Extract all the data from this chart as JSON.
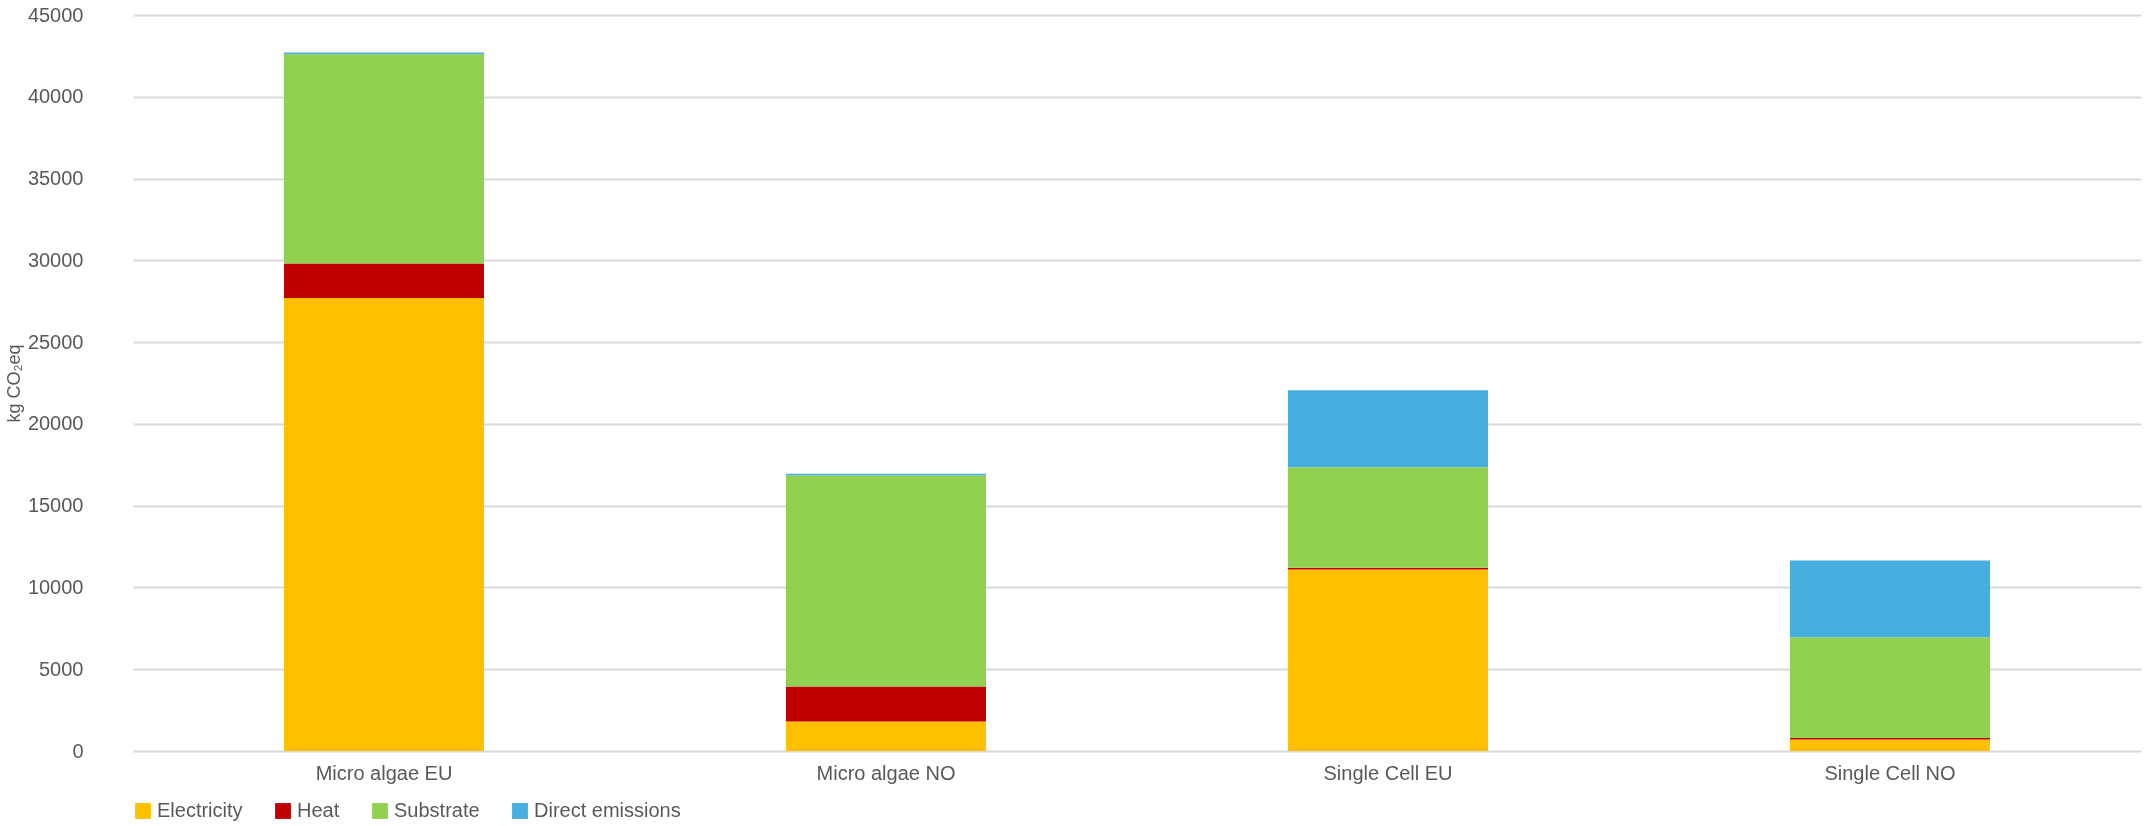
{
  "chart_data": {
    "type": "bar",
    "stacked": true,
    "ylabel": "kg CO₂eq",
    "categories": [
      "Micro algae EU",
      "Micro algae NO",
      "Single Cell EU",
      "Single Cell NO"
    ],
    "series": [
      {
        "name": "Electricity",
        "color": "#ffc000",
        "values": [
          27700,
          1800,
          11100,
          700
        ]
      },
      {
        "name": "Heat",
        "color": "#c00000",
        "values": [
          2100,
          2150,
          100,
          100
        ]
      },
      {
        "name": "Substrate",
        "color": "#92d050",
        "values": [
          12800,
          12900,
          6150,
          6150
        ]
      },
      {
        "name": "Direct emissions",
        "color": "#47afe0",
        "values": [
          100,
          100,
          4700,
          4700
        ]
      }
    ],
    "ylim": [
      0,
      45000
    ],
    "yticks": [
      0,
      5000,
      10000,
      15000,
      20000,
      25000,
      30000,
      35000,
      40000,
      45000
    ],
    "grid": "y",
    "legend": "bottom"
  }
}
